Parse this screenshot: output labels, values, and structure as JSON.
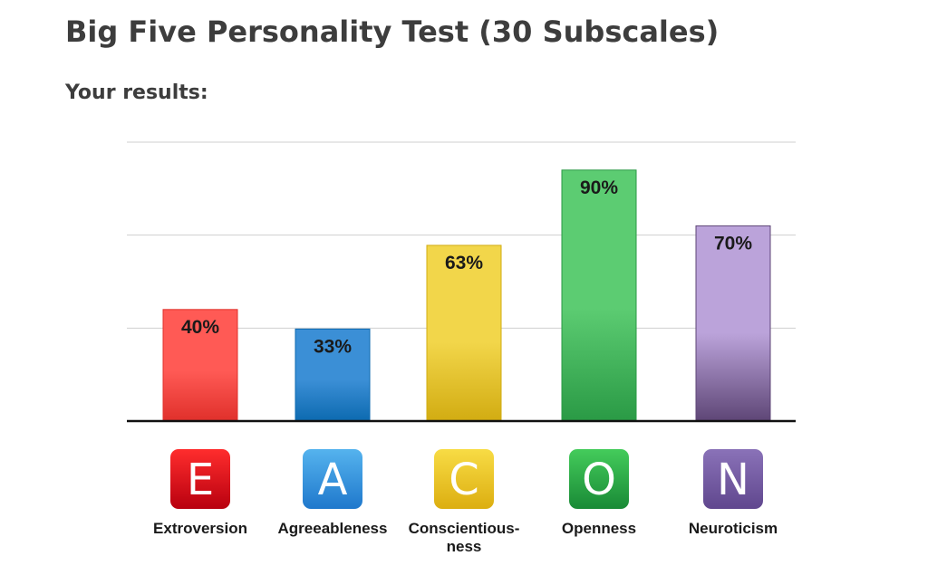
{
  "page": {
    "title": "Big Five Personality Test (30 Subscales)",
    "subtitle": "Your results:"
  },
  "chart_data": {
    "type": "bar",
    "title": "",
    "xlabel": "",
    "ylabel": "",
    "ylim": [
      0,
      100
    ],
    "grid": true,
    "categories": [
      "Extroversion",
      "Agreeableness",
      "Conscientious-ness",
      "Openness",
      "Neuroticism"
    ],
    "category_label_lines": [
      [
        "Extroversion"
      ],
      [
        "Agreeableness"
      ],
      [
        "Conscientious-",
        "ness"
      ],
      [
        "Openness"
      ],
      [
        "Neuroticism"
      ]
    ],
    "values": [
      40,
      33,
      63,
      90,
      70
    ],
    "value_labels": [
      "40%",
      "33%",
      "63%",
      "90%",
      "70%"
    ],
    "letters": [
      "E",
      "A",
      "C",
      "O",
      "N"
    ],
    "colors": {
      "bar_top": [
        "#ff5a55",
        "#3b8fd6",
        "#f2d64a",
        "#5ccc72",
        "#bba3da"
      ],
      "bar_bottom": [
        "#e0302b",
        "#0d6ab0",
        "#d2ac12",
        "#2a9a45",
        "#5e4676"
      ],
      "icon_top": [
        "#ff2d2d",
        "#55b3ee",
        "#f8dc45",
        "#44cc5b",
        "#8a72b8"
      ],
      "icon_bottom": [
        "#b8000f",
        "#1f78cc",
        "#dcae10",
        "#198a36",
        "#60478e"
      ]
    }
  }
}
